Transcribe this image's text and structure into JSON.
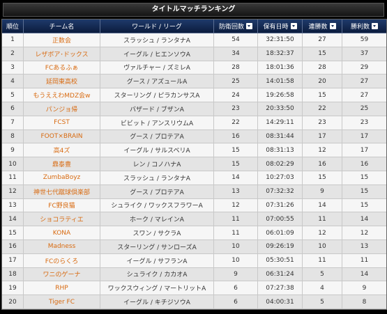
{
  "title": "タイトルマッチランキング",
  "headers": {
    "rank": "順位",
    "team": "チーム名",
    "world": "ワールド / リーグ",
    "defenses": "防衛回数",
    "hold_time": "保有日時",
    "streak": "連勝数",
    "wins": "勝利数"
  },
  "rows": [
    {
      "rank": "1",
      "team": "正数会",
      "world": "スラッシュ / ランタナA",
      "defenses": "54",
      "hold_time": "32:31:50",
      "streak": "27",
      "wins": "59"
    },
    {
      "rank": "2",
      "team": "レザボア･ドックス",
      "world": "イーグル / ヒエンソウA",
      "defenses": "34",
      "hold_time": "18:32:37",
      "streak": "15",
      "wins": "37"
    },
    {
      "rank": "3",
      "team": "FCあるふぁ",
      "world": "ヴァルチャー / ズミレA",
      "defenses": "28",
      "hold_time": "18:01:36",
      "streak": "28",
      "wins": "29"
    },
    {
      "rank": "4",
      "team": "延岡東高校",
      "world": "グース / アズュールA",
      "defenses": "25",
      "hold_time": "14:01:58",
      "streak": "20",
      "wins": "27"
    },
    {
      "rank": "5",
      "team": "もうええわMDZ会w",
      "world": "スターリング / ピラカンサスA",
      "defenses": "24",
      "hold_time": "19:26:58",
      "streak": "15",
      "wins": "27"
    },
    {
      "rank": "6",
      "team": "パンジョ帰",
      "world": "バザード / ブザンA",
      "defenses": "23",
      "hold_time": "20:33:50",
      "streak": "22",
      "wins": "25"
    },
    {
      "rank": "7",
      "team": "FCST",
      "world": "ビビット / アンスリウムA",
      "defenses": "22",
      "hold_time": "14:29:11",
      "streak": "23",
      "wins": "23"
    },
    {
      "rank": "8",
      "team": "FOOT×BRAIN",
      "world": "グース / プロテアA",
      "defenses": "16",
      "hold_time": "08:31:44",
      "streak": "17",
      "wins": "17"
    },
    {
      "rank": "9",
      "team": "高4ズ",
      "world": "イーグル / サルスベリA",
      "defenses": "15",
      "hold_time": "08:31:13",
      "streak": "12",
      "wins": "17"
    },
    {
      "rank": "10",
      "team": "鼎泰豊",
      "world": "レン / コノハナA",
      "defenses": "15",
      "hold_time": "08:02:29",
      "streak": "16",
      "wins": "16"
    },
    {
      "rank": "11",
      "team": "ZumbaBoyz",
      "world": "スラッシュ / ランタナA",
      "defenses": "14",
      "hold_time": "10:27:03",
      "streak": "15",
      "wins": "15"
    },
    {
      "rank": "12",
      "team": "神世七代蹴球倶楽部",
      "world": "グース / プロテアA",
      "defenses": "13",
      "hold_time": "07:32:32",
      "streak": "9",
      "wins": "15"
    },
    {
      "rank": "13",
      "team": "FC野良猫",
      "world": "シュライク / ワックスフラワーA",
      "defenses": "12",
      "hold_time": "07:31:26",
      "streak": "14",
      "wins": "15"
    },
    {
      "rank": "14",
      "team": "ショコラティエ",
      "world": "ホーク / マレインA",
      "defenses": "11",
      "hold_time": "07:00:55",
      "streak": "11",
      "wins": "14"
    },
    {
      "rank": "15",
      "team": "KONA",
      "world": "スワン / サクラA",
      "defenses": "11",
      "hold_time": "06:01:09",
      "streak": "12",
      "wins": "12"
    },
    {
      "rank": "16",
      "team": "Madness",
      "world": "スターリング / サンローズA",
      "defenses": "10",
      "hold_time": "09:26:19",
      "streak": "10",
      "wins": "13"
    },
    {
      "rank": "17",
      "team": "FCのらくろ",
      "world": "イーグル / サフランA",
      "defenses": "10",
      "hold_time": "05:30:51",
      "streak": "11",
      "wins": "11"
    },
    {
      "rank": "18",
      "team": "ワニのゲーナ",
      "world": "シュライク / カカオA",
      "defenses": "9",
      "hold_time": "06:31:24",
      "streak": "5",
      "wins": "14"
    },
    {
      "rank": "19",
      "team": "RHP",
      "world": "ワックスウィング / マートリットA",
      "defenses": "6",
      "hold_time": "07:27:38",
      "streak": "4",
      "wins": "9"
    },
    {
      "rank": "20",
      "team": "Tiger FC",
      "world": "イーグル / キチジソウA",
      "defenses": "6",
      "hold_time": "04:00:31",
      "streak": "5",
      "wins": "8"
    }
  ],
  "colors": {
    "team_name": "#d86a10",
    "header_bg": "#1a2f59",
    "title_bg": "#222222",
    "row_odd": "#f6f6f6",
    "row_even": "#e4e4e4"
  },
  "icons": {
    "sort": "sort-dropdown-icon"
  }
}
